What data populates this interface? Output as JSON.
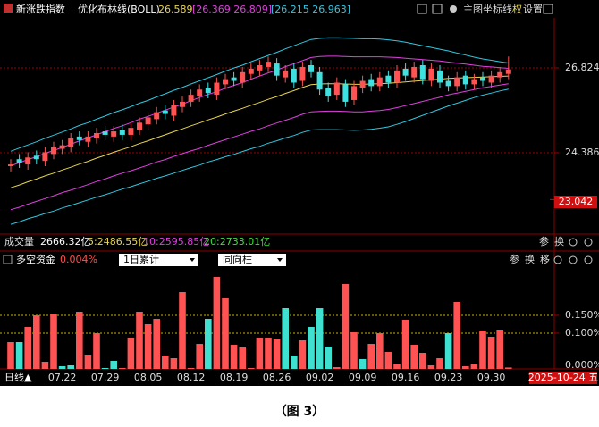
{
  "chart_data": [
    {
      "type": "candlestick",
      "title": "新涨跌指数",
      "indicator": "优化布林线(BOLL)",
      "readouts": [
        {
          "text": "26.589",
          "color": "#e8d44d"
        },
        {
          "text": "[26.369 26.809]",
          "color": "#e040e0"
        },
        {
          "text": "[26.215 26.963]",
          "color": "#30c8e0"
        }
      ],
      "toolbar": [
        "主图",
        "坐标线",
        "权",
        "设置"
      ],
      "open": [
        24.0,
        24.2,
        24.05,
        24.3,
        24.15,
        24.35,
        24.5,
        24.55,
        24.85,
        24.7,
        24.8,
        25.0,
        24.85,
        25.05,
        24.9,
        25.05,
        25.2,
        25.35,
        25.6,
        25.45,
        25.7,
        25.85,
        26.0,
        26.25,
        26.05,
        26.35,
        26.55,
        26.4,
        26.65,
        26.75,
        26.85,
        26.95,
        26.55,
        26.8,
        26.45,
        26.9,
        26.7,
        26.25,
        26.05,
        26.35,
        25.9,
        26.25,
        26.5,
        26.3,
        26.6,
        26.4,
        26.8,
        26.55,
        26.9,
        26.45,
        26.75,
        26.45,
        26.3,
        26.6,
        26.35,
        26.55,
        26.4,
        26.55,
        26.65
      ],
      "high": [
        24.2,
        24.35,
        24.4,
        24.45,
        24.55,
        24.7,
        24.75,
        24.95,
        25.0,
        25.0,
        25.1,
        25.15,
        25.15,
        25.2,
        25.25,
        25.4,
        25.55,
        25.7,
        25.75,
        25.9,
        26.0,
        26.2,
        26.35,
        26.4,
        26.55,
        26.65,
        26.7,
        26.85,
        26.95,
        27.05,
        27.15,
        27.1,
        26.9,
        26.95,
        27.0,
        27.05,
        26.85,
        26.4,
        26.55,
        26.5,
        26.45,
        26.6,
        26.65,
        26.7,
        26.75,
        26.9,
        26.95,
        27.0,
        27.05,
        26.95,
        26.9,
        26.6,
        26.7,
        26.75,
        26.65,
        26.7,
        26.75,
        26.85,
        27.15
      ],
      "low": [
        23.85,
        23.95,
        23.9,
        24.05,
        24.0,
        24.2,
        24.35,
        24.4,
        24.6,
        24.55,
        24.65,
        24.75,
        24.7,
        24.75,
        24.75,
        24.9,
        25.05,
        25.2,
        25.35,
        25.3,
        25.55,
        25.7,
        25.85,
        25.95,
        25.9,
        26.2,
        26.3,
        26.25,
        26.5,
        26.6,
        26.7,
        26.45,
        26.4,
        26.25,
        26.3,
        26.55,
        26.05,
        25.85,
        25.9,
        25.7,
        25.75,
        26.1,
        26.15,
        26.15,
        26.25,
        26.25,
        26.45,
        26.4,
        26.35,
        26.3,
        26.25,
        26.15,
        26.15,
        26.2,
        26.2,
        26.3,
        26.25,
        26.4,
        26.5
      ],
      "close": [
        24.05,
        24.1,
        24.25,
        24.2,
        24.4,
        24.55,
        24.6,
        24.8,
        24.75,
        24.85,
        24.95,
        24.9,
        25.0,
        24.9,
        25.1,
        25.25,
        25.4,
        25.55,
        25.5,
        25.75,
        25.85,
        26.05,
        26.2,
        26.1,
        26.4,
        26.5,
        26.45,
        26.7,
        26.8,
        26.9,
        27.0,
        26.6,
        26.75,
        26.4,
        26.85,
        26.7,
        26.2,
        26.0,
        26.4,
        25.85,
        26.3,
        26.45,
        26.3,
        26.55,
        26.4,
        26.75,
        26.6,
        26.85,
        26.5,
        26.8,
        26.4,
        26.3,
        26.55,
        26.35,
        26.5,
        26.45,
        26.6,
        26.7,
        26.78
      ],
      "up_color": "#ff5252",
      "down_color": "#3fe0e0",
      "lines": [
        {
          "color": "#e8d44d",
          "values": [
            23.38,
            23.46,
            23.55,
            23.63,
            23.72,
            23.8,
            23.89,
            23.97,
            24.06,
            24.14,
            24.23,
            24.31,
            24.4,
            24.48,
            24.56,
            24.65,
            24.73,
            24.82,
            24.9,
            24.99,
            25.07,
            25.16,
            25.24,
            25.33,
            25.41,
            25.5,
            25.58,
            25.66,
            25.75,
            25.83,
            25.92,
            26.0,
            26.09,
            26.17,
            26.26,
            26.34,
            26.36,
            26.37,
            26.37,
            26.36,
            26.35,
            26.35,
            26.36,
            26.37,
            26.38,
            26.4,
            26.42,
            26.44,
            26.46,
            26.48,
            26.5,
            26.52,
            26.53,
            26.54,
            26.55,
            26.56,
            26.57,
            26.58,
            26.589
          ]
        },
        {
          "color": "#e040e0",
          "values": [
            24.01,
            24.1,
            24.19,
            24.27,
            24.37,
            24.45,
            24.54,
            24.63,
            24.73,
            24.81,
            24.9,
            24.99,
            25.08,
            25.16,
            25.25,
            25.35,
            25.43,
            25.52,
            25.61,
            25.7,
            25.78,
            25.88,
            25.97,
            26.06,
            26.14,
            26.24,
            26.32,
            26.4,
            26.5,
            26.59,
            26.68,
            26.76,
            26.86,
            26.94,
            27.03,
            27.12,
            27.15,
            27.16,
            27.16,
            27.15,
            27.14,
            27.14,
            27.14,
            27.14,
            27.13,
            27.12,
            27.1,
            27.08,
            27.06,
            27.04,
            27.02,
            26.99,
            26.96,
            26.93,
            26.9,
            26.87,
            26.85,
            26.83,
            26.809
          ]
        },
        {
          "color": "#e040e0",
          "values": [
            22.75,
            22.82,
            22.91,
            22.99,
            23.07,
            23.15,
            23.24,
            23.31,
            23.39,
            23.47,
            23.56,
            23.63,
            23.72,
            23.8,
            23.87,
            23.95,
            24.03,
            24.12,
            24.19,
            24.28,
            24.36,
            24.44,
            24.51,
            24.6,
            24.68,
            24.76,
            24.84,
            24.92,
            25.0,
            25.07,
            25.16,
            25.24,
            25.32,
            25.4,
            25.49,
            25.56,
            25.57,
            25.58,
            25.58,
            25.57,
            25.56,
            25.56,
            25.58,
            25.6,
            25.63,
            25.68,
            25.74,
            25.8,
            25.86,
            25.92,
            25.98,
            26.05,
            26.1,
            26.15,
            26.2,
            26.25,
            26.29,
            26.33,
            26.369
          ]
        },
        {
          "color": "#30c8e0",
          "values": [
            24.43,
            24.52,
            24.61,
            24.7,
            24.8,
            24.89,
            24.98,
            25.07,
            25.17,
            25.25,
            25.35,
            25.44,
            25.54,
            25.62,
            25.71,
            25.81,
            25.89,
            25.99,
            26.08,
            26.18,
            26.26,
            26.36,
            26.45,
            26.54,
            26.63,
            26.73,
            26.82,
            26.9,
            27.0,
            27.09,
            27.18,
            27.27,
            27.37,
            27.46,
            27.55,
            27.64,
            27.67,
            27.69,
            27.69,
            27.68,
            27.67,
            27.66,
            27.66,
            27.65,
            27.63,
            27.6,
            27.56,
            27.51,
            27.46,
            27.41,
            27.36,
            27.31,
            27.25,
            27.19,
            27.13,
            27.08,
            27.04,
            27.0,
            26.963
          ]
        },
        {
          "color": "#30c8e0",
          "values": [
            22.33,
            22.4,
            22.49,
            22.56,
            22.64,
            22.71,
            22.8,
            22.87,
            22.95,
            23.03,
            23.11,
            23.18,
            23.26,
            23.34,
            23.41,
            23.49,
            23.57,
            23.65,
            23.72,
            23.8,
            23.88,
            23.96,
            24.03,
            24.12,
            24.19,
            24.27,
            24.34,
            24.42,
            24.5,
            24.57,
            24.66,
            24.73,
            24.81,
            24.88,
            24.97,
            25.04,
            25.05,
            25.05,
            25.05,
            25.04,
            25.03,
            25.04,
            25.06,
            25.09,
            25.13,
            25.2,
            25.28,
            25.37,
            25.46,
            25.55,
            25.64,
            25.73,
            25.81,
            25.89,
            25.97,
            26.04,
            26.1,
            26.16,
            26.215
          ]
        }
      ],
      "ylim": [
        22.05,
        28.26
      ],
      "yticks": [
        24.386,
        26.824
      ],
      "grid": true,
      "price_box": 23.042,
      "volume_header": [
        {
          "text": "成交量",
          "color": "#dddddd"
        },
        {
          "text": "2666.32亿",
          "color": "#ffffff"
        },
        {
          "text": "5:2486.55亿",
          "color": "#e8d44d"
        },
        {
          "text": "10:2595.85亿",
          "color": "#e040e0"
        },
        {
          "text": "20:2733.01亿",
          "color": "#40e040"
        }
      ],
      "volume_tools": [
        "参",
        "换"
      ]
    },
    {
      "type": "bar",
      "title": "多空资金",
      "readout": {
        "value": 0.004,
        "label": "0.004%"
      },
      "dropdowns": [
        "1日累计",
        "同向柱"
      ],
      "tools": [
        "参",
        "换",
        "移"
      ],
      "categories": [
        null,
        null,
        null,
        null,
        null,
        null,
        "07.22",
        null,
        null,
        null,
        null,
        "07.29",
        null,
        null,
        null,
        null,
        "08.05",
        null,
        null,
        null,
        null,
        "08.12",
        null,
        null,
        null,
        null,
        "08.19",
        null,
        null,
        null,
        null,
        "08.26",
        null,
        null,
        null,
        null,
        "09.02",
        null,
        null,
        null,
        null,
        "09.09",
        null,
        null,
        null,
        null,
        "09.16",
        null,
        null,
        null,
        null,
        "09.23",
        null,
        null,
        null,
        null,
        "09.30",
        null,
        null
      ],
      "values": [
        0.075,
        0.075,
        0.1175,
        0.15,
        0.02,
        0.155,
        0.0075,
        0.01,
        0.16,
        0.04,
        0.1,
        0.0025,
        0.0225,
        0.0025,
        0.0875,
        0.16,
        0.125,
        0.14,
        0.0375,
        0.03,
        0.215,
        0.0025,
        0.07,
        0.14,
        0.2575,
        0.1975,
        0.0675,
        0.06,
        0.0025,
        0.0875,
        0.0875,
        0.0825,
        0.17,
        0.0375,
        0.08,
        0.1175,
        0.17,
        0.0625,
        0.005,
        0.2375,
        0.1025,
        0.0275,
        0.07,
        0.1,
        0.0475,
        0.0125,
        0.1375,
        0.0675,
        0.045,
        0.01,
        0.03,
        0.1,
        0.1875,
        0.0075,
        0.0125,
        0.1075,
        0.09,
        0.11,
        0.004
      ],
      "colors": [
        "#ff5252",
        "#3fe0d0",
        "#ff5252",
        "#ff5252",
        "#ff5252",
        "#ff5252",
        "#3fe0d0",
        "#3fe0d0",
        "#ff5252",
        "#ff5252",
        "#ff5252",
        "#3fe0d0",
        "#3fe0d0",
        "#ff5252",
        "#ff5252",
        "#ff5252",
        "#ff5252",
        "#ff5252",
        "#ff5252",
        "#ff5252",
        "#ff5252",
        "#ff5252",
        "#ff5252",
        "#3fe0d0",
        "#ff5252",
        "#ff5252",
        "#ff5252",
        "#ff5252",
        "#ff5252",
        "#ff5252",
        "#ff5252",
        "#ff5252",
        "#3fe0d0",
        "#3fe0d0",
        "#ff5252",
        "#3fe0d0",
        "#3fe0d0",
        "#3fe0d0",
        "#ff5252",
        "#ff5252",
        "#ff5252",
        "#3fe0d0",
        "#ff5252",
        "#ff5252",
        "#ff5252",
        "#ff5252",
        "#ff5252",
        "#ff5252",
        "#ff5252",
        "#ff5252",
        "#ff5252",
        "#3fe0d0",
        "#ff5252",
        "#ff5252",
        "#ff5252",
        "#ff5252",
        "#ff5252",
        "#ff5252",
        "#ff5252"
      ],
      "ylim": [
        0,
        0.31
      ],
      "yticks": [
        {
          "value": 0,
          "label": "0.000%"
        },
        {
          "value": 0.1,
          "label": "0.100%"
        },
        {
          "value": 0.15,
          "label": "0.150%"
        }
      ],
      "grid": true,
      "x_prefix": "日线▲",
      "date_box": "2025-10-24 五"
    }
  ],
  "caption": "（图 3）"
}
